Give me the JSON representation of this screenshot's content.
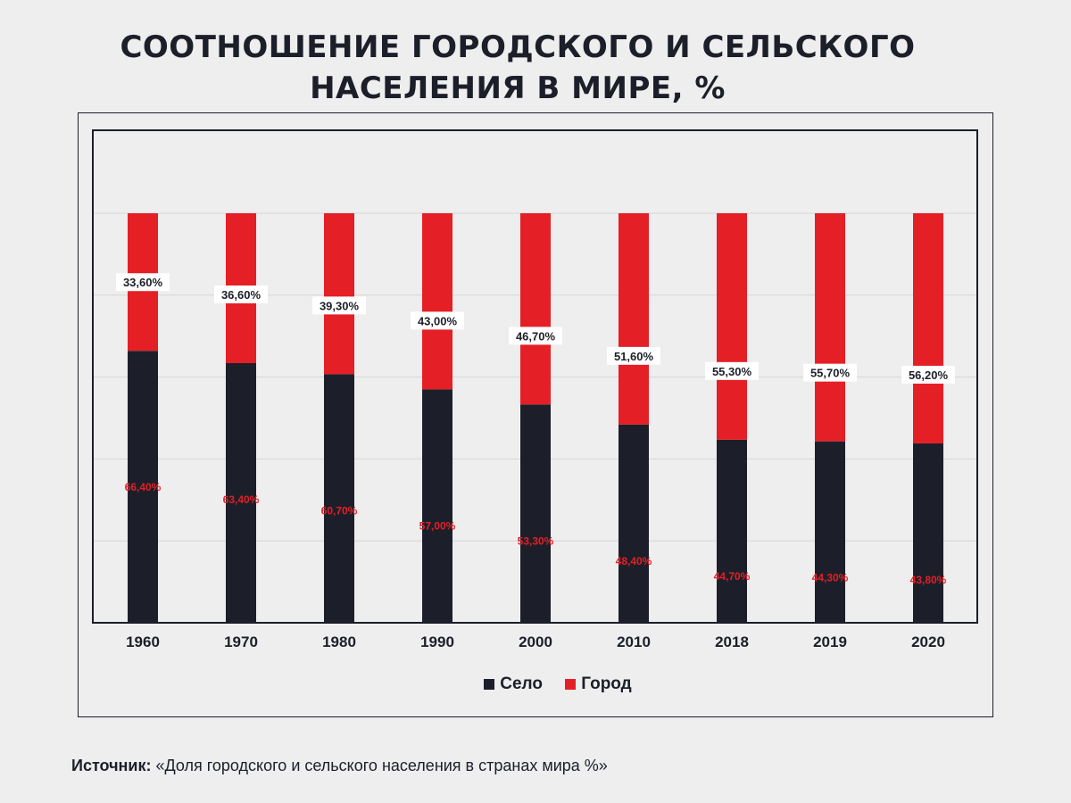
{
  "title_line1": "СООТНОШЕНИЕ ГОРОДСКОГО И СЕЛЬСКОГО",
  "title_line2": "НАСЕЛЕНИЯ В МИРЕ, %",
  "colors": {
    "selo": "#1c1f29",
    "gorod": "#e41f26",
    "background": "#eeeeee"
  },
  "chart_data": {
    "type": "bar",
    "stacked": true,
    "categories": [
      "1960",
      "1970",
      "1980",
      "1990",
      "2000",
      "2010",
      "2018",
      "2019",
      "2020"
    ],
    "series": [
      {
        "name": "Село",
        "values": [
          66.4,
          63.4,
          60.7,
          57.0,
          53.3,
          48.4,
          44.7,
          44.3,
          43.8
        ],
        "labels": [
          "66,40%",
          "63,40%",
          "60,70%",
          "57,00%",
          "53,30%",
          "48,40%",
          "44,70%",
          "44,30%",
          "43,80%"
        ]
      },
      {
        "name": "Город",
        "values": [
          33.6,
          36.6,
          39.3,
          43.0,
          46.7,
          51.6,
          55.3,
          55.7,
          56.2
        ],
        "labels": [
          "33,60%",
          "36,60%",
          "39,30%",
          "43,00%",
          "46,70%",
          "51,60%",
          "55,30%",
          "55,70%",
          "56,20%"
        ]
      }
    ],
    "ylim": [
      0,
      100
    ],
    "grid": true,
    "legend": "bottom-center"
  },
  "legend": {
    "selo": "Село",
    "gorod": "Город"
  },
  "source": {
    "label": "Источник:",
    "text": " «Доля городского и сельского населения в странах мира %»"
  }
}
